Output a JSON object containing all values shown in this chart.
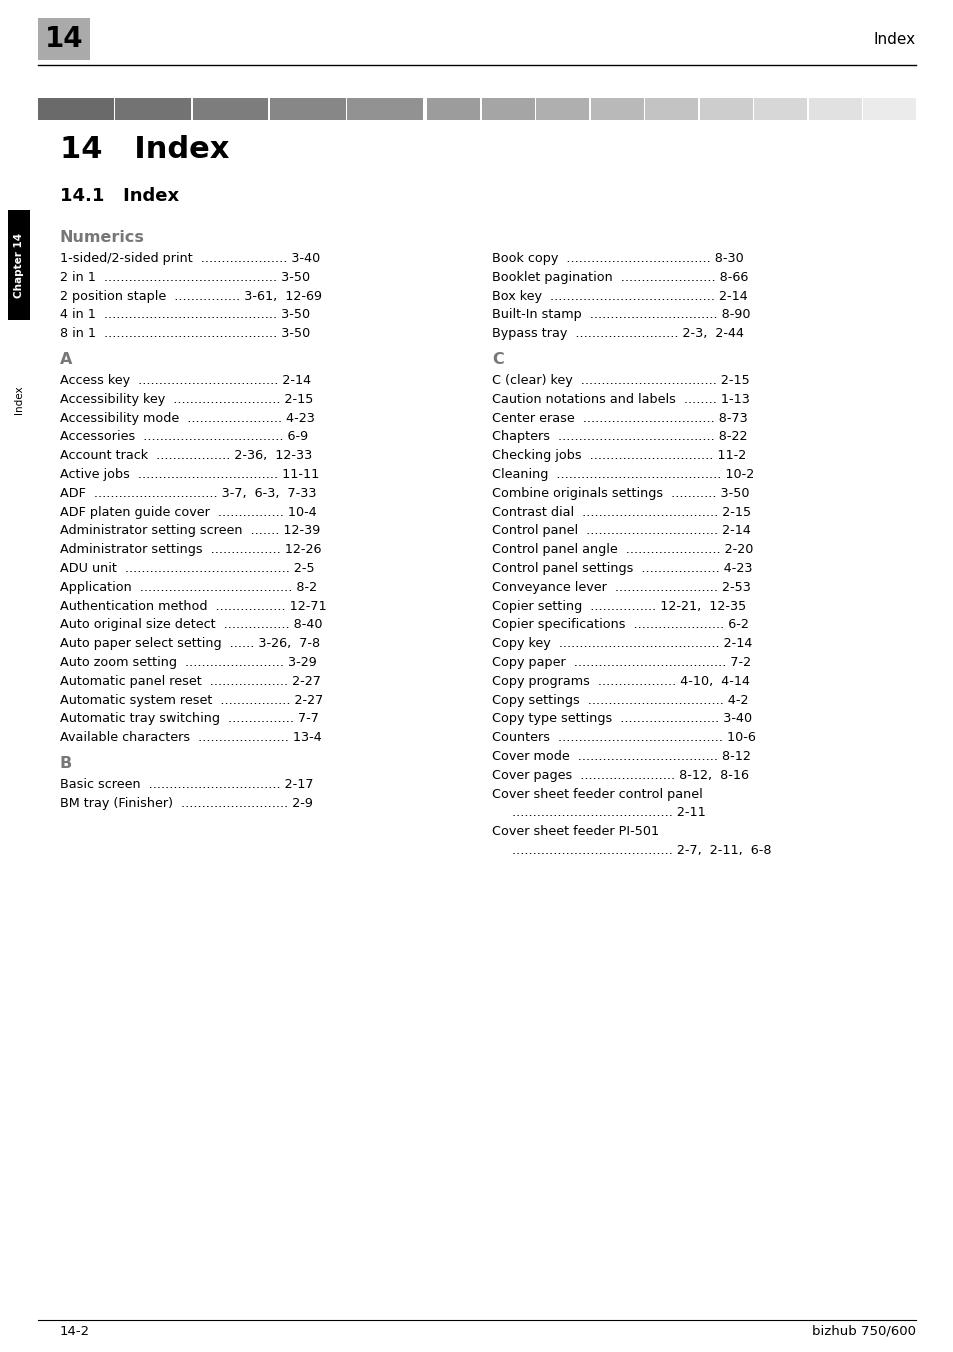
{
  "page_number": "14",
  "header_right": "Index",
  "footer_left": "14-2",
  "footer_right": "bizhub 750/600",
  "chapter_side_label": "Chapter 14",
  "index_side_label": "Index",
  "main_title": "14   Index",
  "section_title": "14.1   Index",
  "numerics_heading": "Numerics",
  "a_heading": "A",
  "b_heading": "B",
  "c_heading": "C",
  "gradient_colors": [
    "#6e6e6e",
    "#787878",
    "#828282",
    "#8c8c8c",
    "#969696",
    "#a0a0a0",
    "#aaaaaa",
    "#b4b4b4",
    "#bebebe",
    "#c8c8c8",
    "#d2d2d2",
    "#dcdcdc",
    "#e6e6e6",
    "#f0f0f0"
  ],
  "bg_color": "#ffffff",
  "left_entries": [
    {
      "text": "1-sided/2-sided print  ..................... 3-40",
      "section": "numerics"
    },
    {
      "text": "2 in 1  .......................................... 3-50",
      "section": "numerics"
    },
    {
      "text": "2 position staple  ................ 3-61,  12-69",
      "section": "numerics"
    },
    {
      "text": "4 in 1  .......................................... 3-50",
      "section": "numerics"
    },
    {
      "text": "8 in 1  .......................................... 3-50",
      "section": "numerics"
    },
    {
      "text": "Access key  .................................. 2-14",
      "section": "a"
    },
    {
      "text": "Accessibility key  .......................... 2-15",
      "section": "a"
    },
    {
      "text": "Accessibility mode  ....................... 4-23",
      "section": "a"
    },
    {
      "text": "Accessories  .................................. 6-9",
      "section": "a"
    },
    {
      "text": "Account track  .................. 2-36,  12-33",
      "section": "a"
    },
    {
      "text": "Active jobs  .................................. 11-11",
      "section": "a"
    },
    {
      "text": "ADF  .............................. 3-7,  6-3,  7-33",
      "section": "a"
    },
    {
      "text": "ADF platen guide cover  ................ 10-4",
      "section": "a"
    },
    {
      "text": "Administrator setting screen  ....... 12-39",
      "section": "a"
    },
    {
      "text": "Administrator settings  ................. 12-26",
      "section": "a"
    },
    {
      "text": "ADU unit  ........................................ 2-5",
      "section": "a"
    },
    {
      "text": "Application  ..................................... 8-2",
      "section": "a"
    },
    {
      "text": "Authentication method  ................. 12-71",
      "section": "a"
    },
    {
      "text": "Auto original size detect  ................ 8-40",
      "section": "a"
    },
    {
      "text": "Auto paper select setting  ...... 3-26,  7-8",
      "section": "a"
    },
    {
      "text": "Auto zoom setting  ........................ 3-29",
      "section": "a"
    },
    {
      "text": "Automatic panel reset  ................... 2-27",
      "section": "a"
    },
    {
      "text": "Automatic system reset  ................. 2-27",
      "section": "a"
    },
    {
      "text": "Automatic tray switching  ................ 7-7",
      "section": "a"
    },
    {
      "text": "Available characters  ...................... 13-4",
      "section": "a"
    },
    {
      "text": "Basic screen  ................................ 2-17",
      "section": "b"
    },
    {
      "text": "BM tray (Finisher)  .......................... 2-9",
      "section": "b"
    }
  ],
  "right_entries": [
    {
      "text": "Book copy  ................................... 8-30",
      "section": "b"
    },
    {
      "text": "Booklet pagination  ....................... 8-66",
      "section": "b"
    },
    {
      "text": "Box key  ........................................ 2-14",
      "section": "b"
    },
    {
      "text": "Built-In stamp  ............................... 8-90",
      "section": "b"
    },
    {
      "text": "Bypass tray  ......................... 2-3,  2-44",
      "section": "b"
    },
    {
      "text": "C (clear) key  ................................. 2-15",
      "section": "c"
    },
    {
      "text": "Caution notations and labels  ........ 1-13",
      "section": "c"
    },
    {
      "text": "Center erase  ................................ 8-73",
      "section": "c"
    },
    {
      "text": "Chapters  ...................................... 8-22",
      "section": "c"
    },
    {
      "text": "Checking jobs  .............................. 11-2",
      "section": "c"
    },
    {
      "text": "Cleaning  ........................................ 10-2",
      "section": "c"
    },
    {
      "text": "Combine originals settings  ........... 3-50",
      "section": "c"
    },
    {
      "text": "Contrast dial  ................................. 2-15",
      "section": "c"
    },
    {
      "text": "Control panel  ................................ 2-14",
      "section": "c"
    },
    {
      "text": "Control panel angle  ....................... 2-20",
      "section": "c"
    },
    {
      "text": "Control panel settings  ................... 4-23",
      "section": "c"
    },
    {
      "text": "Conveyance lever  ......................... 2-53",
      "section": "c"
    },
    {
      "text": "Copier setting  ................ 12-21,  12-35",
      "section": "c"
    },
    {
      "text": "Copier specifications  ...................... 6-2",
      "section": "c"
    },
    {
      "text": "Copy key  ....................................... 2-14",
      "section": "c"
    },
    {
      "text": "Copy paper  ..................................... 7-2",
      "section": "c"
    },
    {
      "text": "Copy programs  ................... 4-10,  4-14",
      "section": "c"
    },
    {
      "text": "Copy settings  ................................. 4-2",
      "section": "c"
    },
    {
      "text": "Copy type settings  ........................ 3-40",
      "section": "c"
    },
    {
      "text": "Counters  ........................................ 10-6",
      "section": "c"
    },
    {
      "text": "Cover mode  .................................. 8-12",
      "section": "c"
    },
    {
      "text": "Cover pages  ....................... 8-12,  8-16",
      "section": "c"
    },
    {
      "text": "Cover sheet feeder control panel",
      "section": "c",
      "continued": true
    },
    {
      "text": "....................................... 2-11",
      "section": "c",
      "indent": true
    },
    {
      "text": "Cover sheet feeder PI-501",
      "section": "c",
      "continued": true
    },
    {
      "text": "....................................... 2-7,  2-11,  6-8",
      "section": "c",
      "indent": true
    }
  ]
}
